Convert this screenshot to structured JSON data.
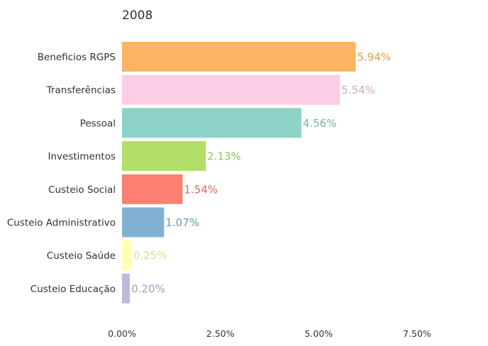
{
  "chart_data": {
    "type": "bar",
    "orientation": "horizontal",
    "title": "2008",
    "xlabel": "",
    "ylabel": "",
    "xlim": [
      0,
      7.5
    ],
    "grid": false,
    "legend": "none",
    "x_ticks": [
      "0.00%",
      "2.50%",
      "5.00%",
      "7.50%"
    ],
    "tick_values": [
      0,
      2.5,
      5,
      7.5
    ],
    "categories": [
      "Beneficios RGPS",
      "Transferências",
      "Pessoal",
      "Investimentos",
      "Custeio Social",
      "Custeio Administrativo",
      "Custeio Saúde",
      "Custeio Educação"
    ],
    "values": [
      5.94,
      5.54,
      4.56,
      2.13,
      1.54,
      1.07,
      0.25,
      0.2
    ],
    "value_labels": [
      "5.94%",
      "5.54%",
      "4.56%",
      "2.13%",
      "1.54%",
      "1.07%",
      "0.25%",
      "0.20%"
    ],
    "colors": [
      "#fdb462",
      "#fccde5",
      "#8dd3c7",
      "#b3de69",
      "#fb8072",
      "#80b1d3",
      "#ffffb3",
      "#bebada"
    ],
    "label_colors": [
      "#d9a04f",
      "#d4a8bd",
      "#6fb3a6",
      "#93c04e",
      "#d9685d",
      "#6a96b5",
      "#e0dc8a",
      "#9f9bbd"
    ]
  }
}
